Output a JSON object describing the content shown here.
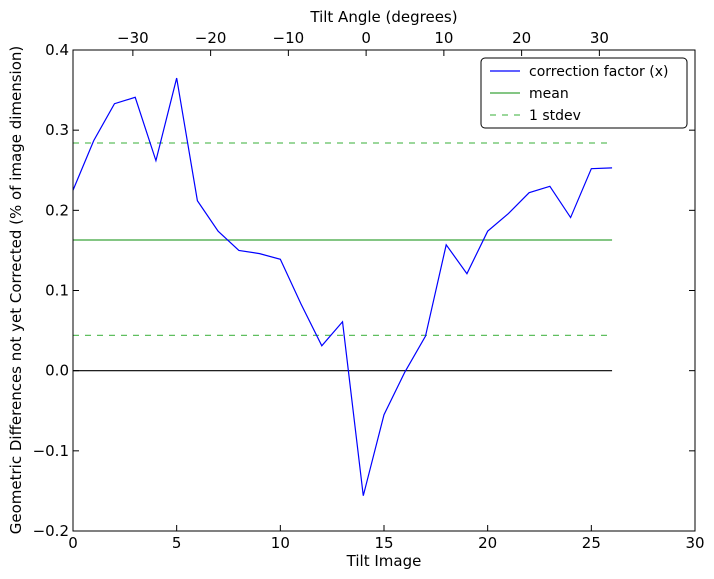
{
  "chart_data": {
    "type": "line",
    "xlabel": "Tilt Image",
    "ylabel": "Geometric Differences not yet Corrected (% of image dimension)",
    "top_xlabel": "Tilt Angle (degrees)",
    "xlim": [
      0,
      30
    ],
    "ylim": [
      -0.2,
      0.4
    ],
    "top_xlim": [
      -37.7,
      42.3
    ],
    "x_ticks": [
      0,
      5,
      10,
      15,
      20,
      25,
      30
    ],
    "x_tick_labels": [
      "0",
      "5",
      "10",
      "15",
      "20",
      "25",
      "30"
    ],
    "y_ticks": [
      -0.2,
      -0.1,
      0.0,
      0.1,
      0.2,
      0.3,
      0.4
    ],
    "y_tick_labels": [
      "−0.2",
      "−0.1",
      "0.0",
      "0.1",
      "0.2",
      "0.3",
      "0.4"
    ],
    "top_x_ticks": [
      -30,
      -20,
      -10,
      0,
      10,
      20,
      30
    ],
    "top_x_tick_labels": [
      "−30",
      "−20",
      "−10",
      "0",
      "10",
      "20",
      "30"
    ],
    "grid": false,
    "legend_position": "top-right",
    "legend": [
      {
        "label": "correction factor (x)",
        "color": "#0000ff",
        "style": "solid"
      },
      {
        "label": "mean",
        "color": "#3aa33a",
        "style": "solid"
      },
      {
        "label": "1 stdev",
        "color": "#5fbf5f",
        "style": "dashed"
      }
    ],
    "series": [
      {
        "name": "correction factor (x)",
        "color": "#0000ff",
        "x": [
          0,
          1,
          2,
          3,
          4,
          5,
          6,
          7,
          8,
          9,
          10,
          11,
          12,
          13,
          14,
          15,
          16,
          17,
          18,
          19,
          20,
          21,
          22,
          23,
          24,
          25,
          26
        ],
        "values": [
          0.225,
          0.287,
          0.333,
          0.341,
          0.262,
          0.365,
          0.212,
          0.174,
          0.15,
          0.146,
          0.139,
          0.083,
          0.031,
          0.061,
          -0.156,
          -0.055,
          -0.002,
          0.043,
          0.157,
          0.121,
          0.174,
          0.196,
          0.222,
          0.23,
          0.191,
          0.252,
          0.253
        ]
      }
    ],
    "reference_lines": [
      {
        "name": "mean",
        "y": 0.163,
        "x_range": [
          0,
          26
        ],
        "color": "#3aa33a",
        "style": "solid"
      },
      {
        "name": "1 stdev",
        "y": 0.284,
        "x_range": [
          0,
          26
        ],
        "color": "#5fbf5f",
        "style": "dashed"
      },
      {
        "name": "1 stdev",
        "y": 0.044,
        "x_range": [
          0,
          26
        ],
        "color": "#5fbf5f",
        "style": "dashed"
      },
      {
        "name": "zero",
        "y": 0.0,
        "x_range": [
          0,
          26
        ],
        "color": "#000000",
        "style": "solid"
      }
    ]
  }
}
